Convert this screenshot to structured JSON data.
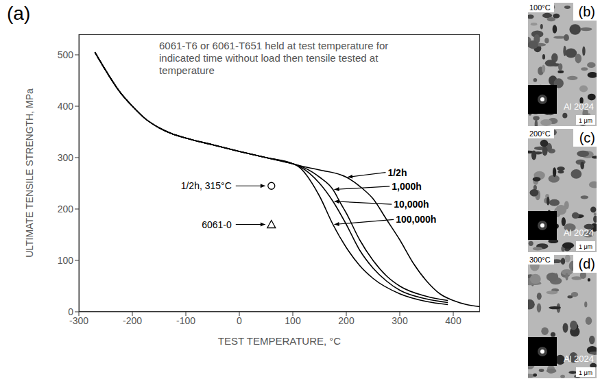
{
  "chart_data": {
    "type": "line",
    "panel": "(a)",
    "x_label": "TEST TEMPERATURE, °C",
    "y_label": "ULTIMATE TENSILE STRENGTH, MPa",
    "annotations": [
      "6061-T6 or 6061-T651 held at test temperature for indicated time without load then tensile tested at temperature"
    ],
    "xlim": [
      -300,
      450
    ],
    "ylim": [
      0,
      540
    ],
    "xticks": [
      -300,
      -200,
      -100,
      0,
      100,
      200,
      300,
      400
    ],
    "yticks": [
      0,
      100,
      200,
      300,
      400,
      500
    ],
    "color": "#000000",
    "series": [
      {
        "name": "1/2h",
        "x": [
          -270,
          -250,
          -225,
          -200,
          -175,
          -150,
          -125,
          -100,
          -50,
          0,
          50,
          100,
          110,
          150,
          200,
          230,
          250,
          275,
          300,
          325,
          350,
          375,
          400,
          425,
          450
        ],
        "values": [
          505,
          470,
          430,
          400,
          375,
          358,
          346,
          338,
          325,
          312,
          300,
          288,
          285,
          276,
          262,
          240,
          220,
          180,
          140,
          95,
          60,
          35,
          22,
          14,
          10
        ]
      },
      {
        "name": "1,000h",
        "x": [
          -270,
          -250,
          -225,
          -200,
          -175,
          -150,
          -125,
          -100,
          -50,
          0,
          50,
          100,
          110,
          150,
          175,
          190,
          200,
          225,
          250,
          275,
          300,
          350,
          390
        ],
        "values": [
          505,
          470,
          430,
          400,
          375,
          358,
          346,
          338,
          325,
          312,
          300,
          288,
          285,
          262,
          238,
          210,
          192,
          140,
          100,
          70,
          50,
          30,
          22
        ]
      },
      {
        "name": "10,000h",
        "x": [
          -270,
          -250,
          -225,
          -200,
          -175,
          -150,
          -125,
          -100,
          -50,
          0,
          50,
          100,
          110,
          150,
          175,
          200,
          225,
          250,
          275,
          300,
          350,
          390
        ],
        "values": [
          505,
          470,
          430,
          400,
          375,
          358,
          346,
          338,
          325,
          312,
          300,
          288,
          284,
          250,
          215,
          170,
          120,
          85,
          60,
          42,
          25,
          18
        ]
      },
      {
        "name": "100,000h",
        "x": [
          -270,
          -250,
          -225,
          -200,
          -175,
          -150,
          -125,
          -100,
          -50,
          0,
          50,
          100,
          110,
          150,
          175,
          200,
          225,
          250,
          300,
          350,
          390
        ],
        "values": [
          505,
          470,
          430,
          400,
          375,
          358,
          346,
          338,
          325,
          312,
          300,
          288,
          283,
          225,
          170,
          125,
          90,
          65,
          35,
          20,
          14
        ]
      },
      {
        "name": "1/2h, 315°C",
        "type": "scatter",
        "marker": "circle",
        "x": [
          60
        ],
        "values": [
          245
        ]
      },
      {
        "name": "6061-0",
        "type": "scatter",
        "marker": "triangle",
        "x": [
          60
        ],
        "values": [
          170
        ]
      }
    ]
  },
  "images": [
    {
      "label": "(b)",
      "temperature": "100°C",
      "material": "Al 2024",
      "scale_bar": "1 μm"
    },
    {
      "label": "(c)",
      "temperature": "200°C",
      "material": "Al 2024",
      "scale_bar": "1 μm"
    },
    {
      "label": "(d)",
      "temperature": "300°C",
      "material": "Al 2024",
      "scale_bar": "1 μm"
    }
  ]
}
